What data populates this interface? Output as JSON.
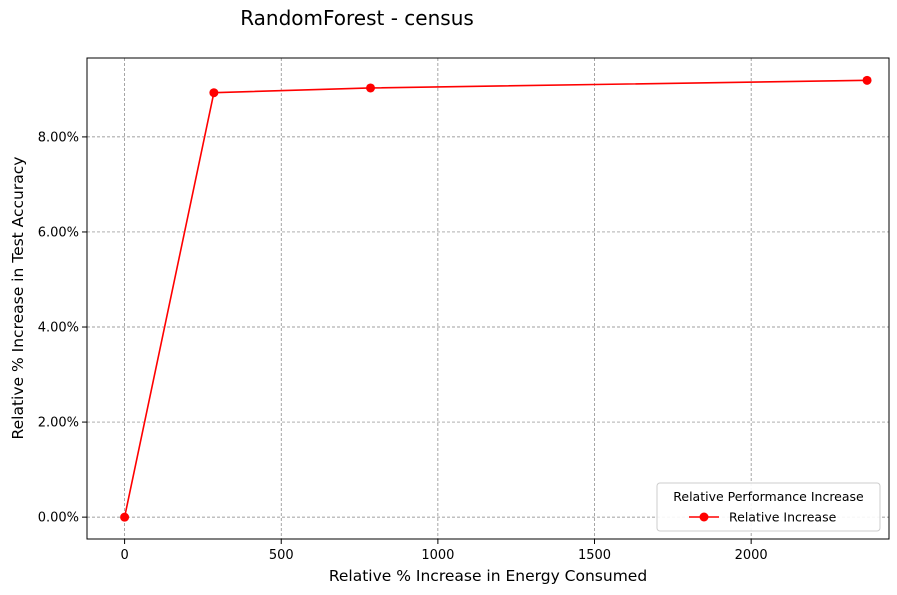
{
  "chart_data": {
    "type": "line",
    "title": "RandomForest - census",
    "xlabel": "Relative % Increase in Energy Consumed",
    "ylabel": "Relative % Increase in Test Accuracy",
    "xlim": [
      -120,
      2440
    ],
    "ylim": [
      -0.46,
      9.66
    ],
    "xticks": [
      0,
      500,
      1000,
      1500,
      2000
    ],
    "xtick_labels": [
      "0",
      "500",
      "1000",
      "1500",
      "2000"
    ],
    "yticks": [
      0,
      2,
      4,
      6,
      8
    ],
    "ytick_labels": [
      "0.00%",
      "2.00%",
      "4.00%",
      "6.00%",
      "8.00%"
    ],
    "grid": true,
    "legend": {
      "title": "Relative Performance Increase",
      "position": "lower-right"
    },
    "series": [
      {
        "name": "Relative Increase",
        "color": "#ff0000",
        "marker": "circle",
        "x": [
          0,
          285,
          785,
          2370
        ],
        "y": [
          0.0,
          8.93,
          9.03,
          9.19
        ]
      }
    ]
  }
}
